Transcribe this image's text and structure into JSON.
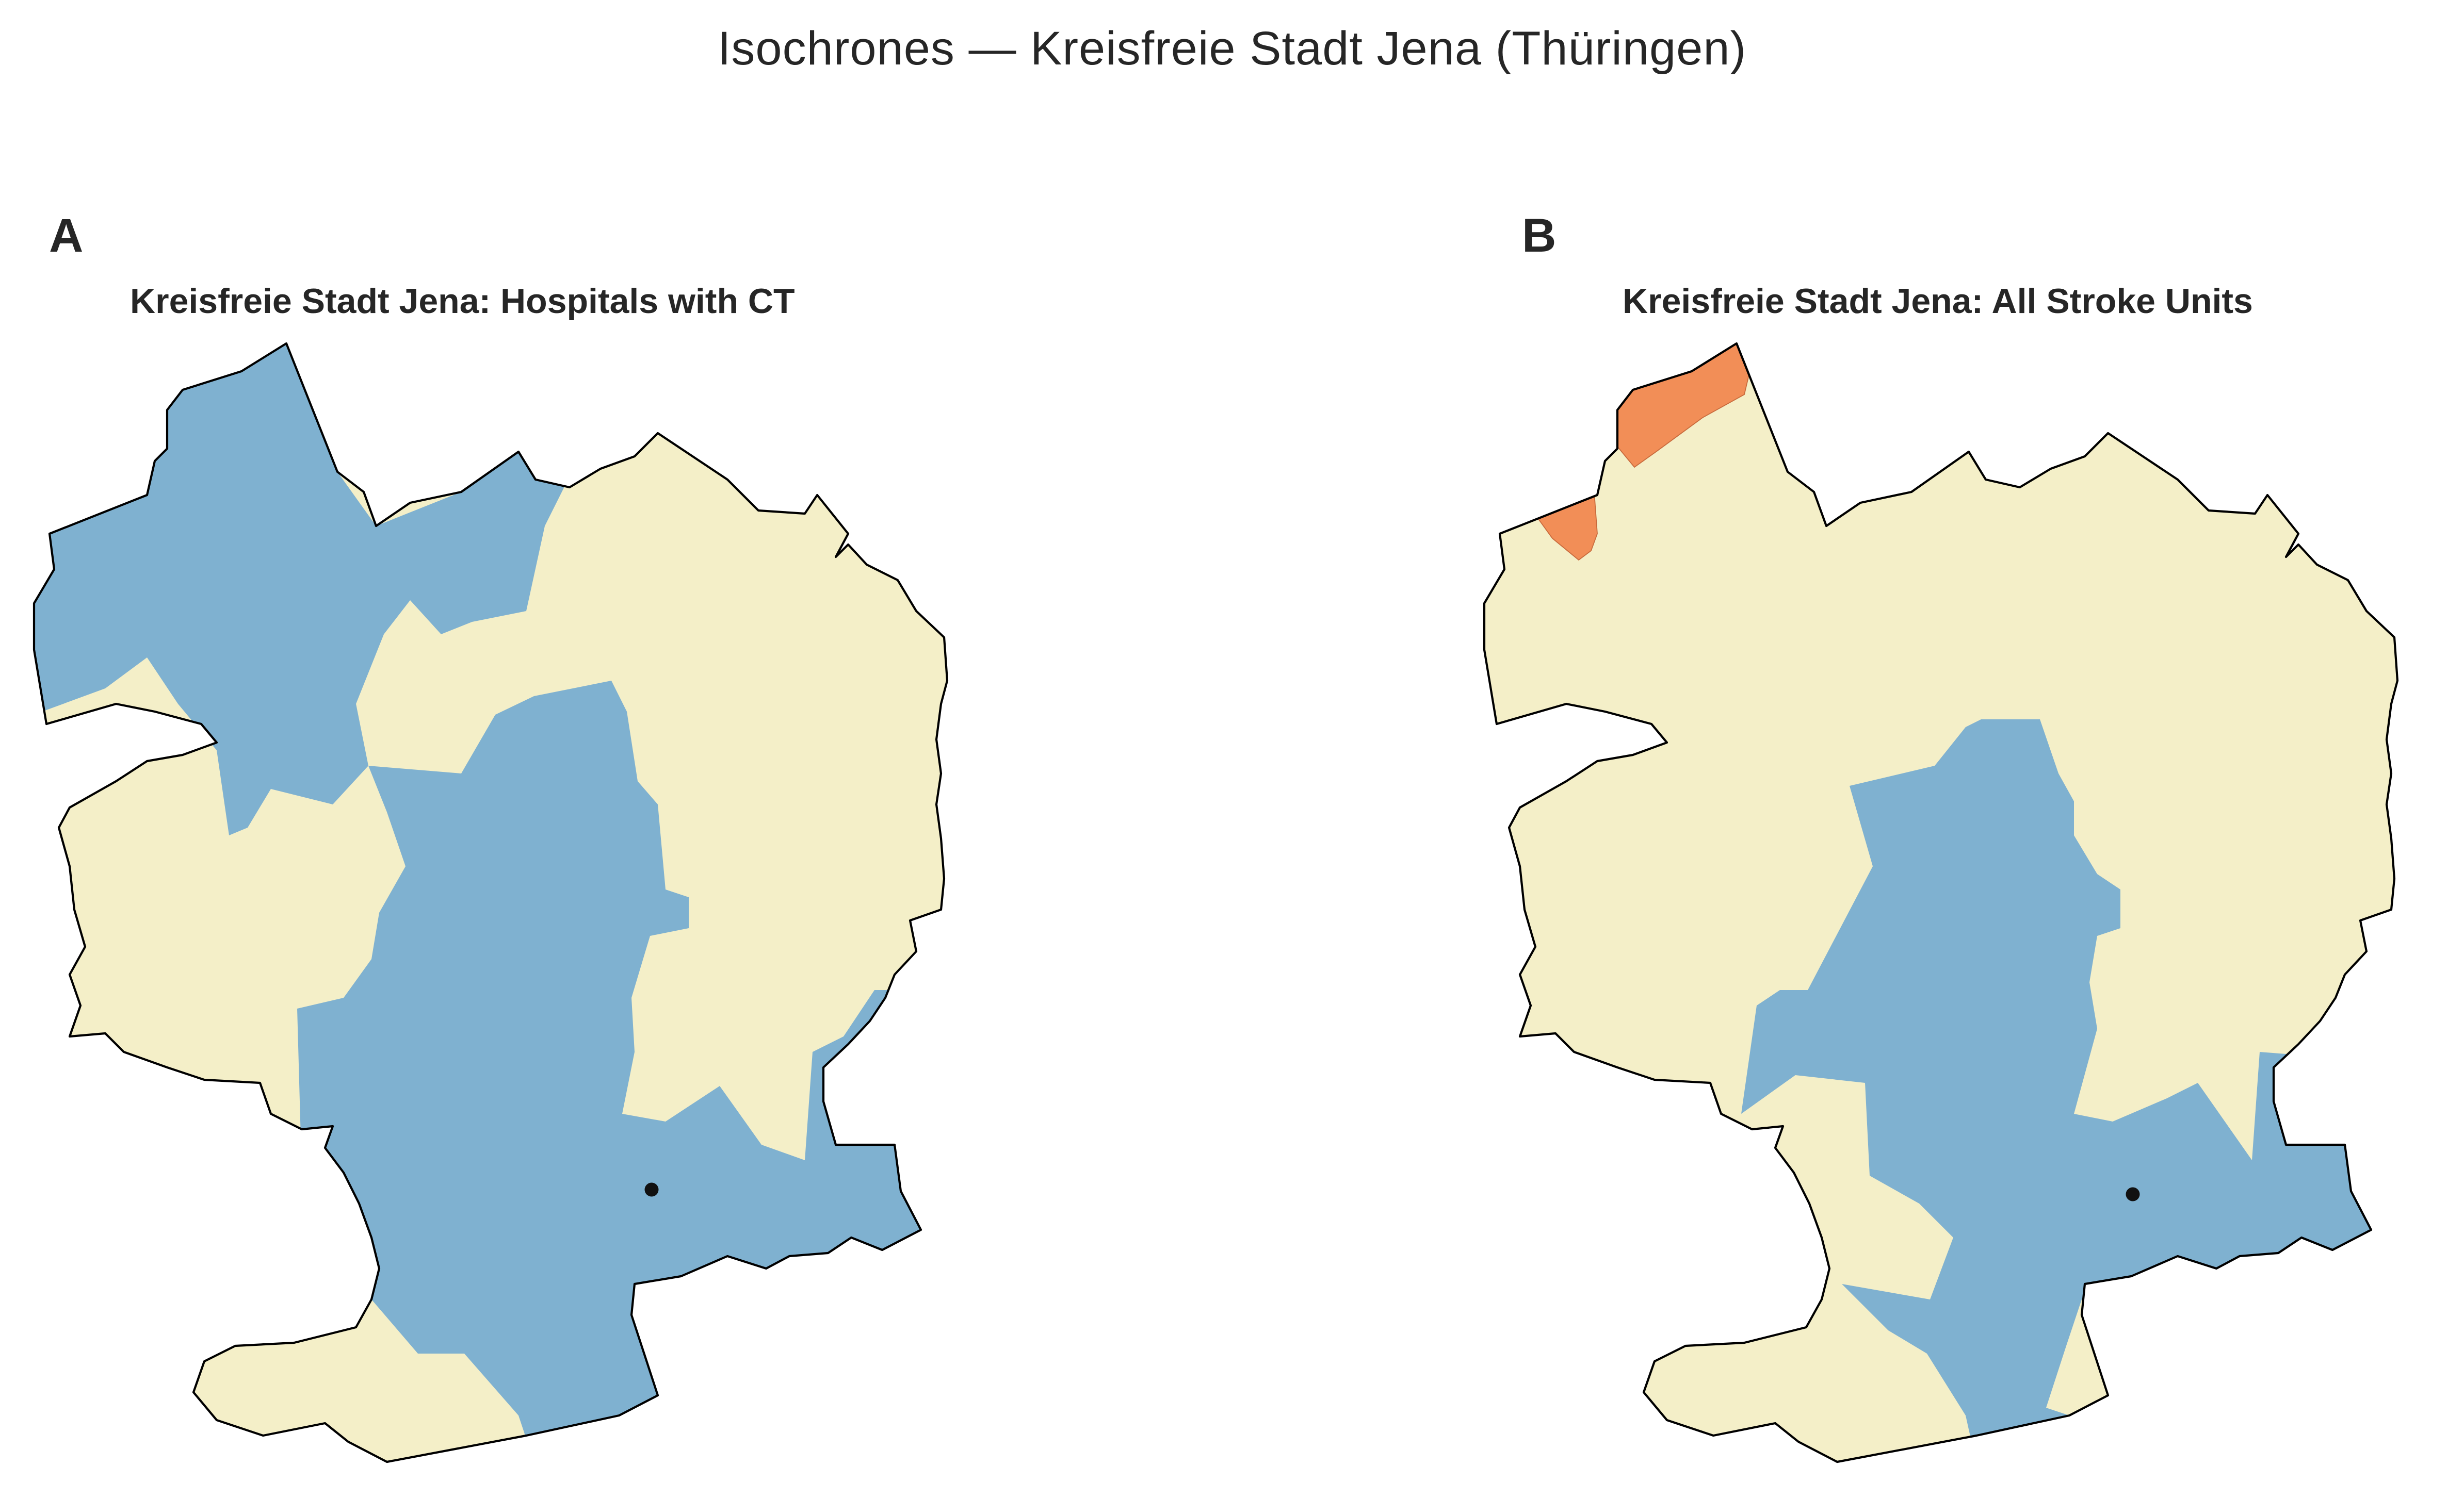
{
  "figure": {
    "title": "Isochrones — Kreisfreie Stadt Jena (Thüringen)"
  },
  "colors": {
    "within_threshold": "#7fb1d0",
    "medium": "#f4efc8",
    "far": "#f28e57",
    "outline": "#000000",
    "facility_marker": "#111111"
  },
  "panels": [
    {
      "letter": "A",
      "title": "Kreisfreie Stadt Jena: Hospitals with CT",
      "facility_count": 1
    },
    {
      "letter": "B",
      "title": "Kreisfreie Stadt Jena: All Stroke Units",
      "facility_count": 1
    }
  ]
}
